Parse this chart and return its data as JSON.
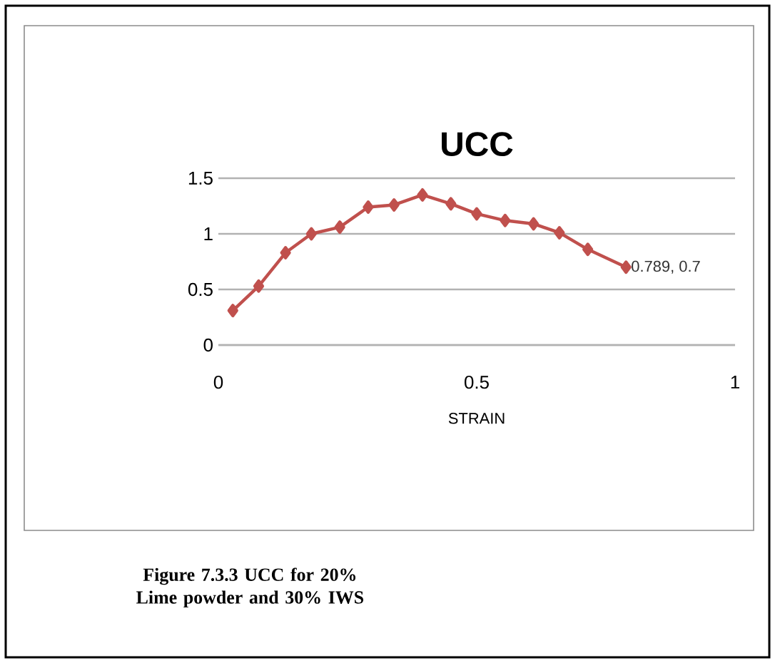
{
  "chart_data": {
    "type": "line",
    "title": "UCC",
    "xlabel": "STRAIN",
    "x": [
      0.028,
      0.078,
      0.13,
      0.18,
      0.235,
      0.29,
      0.34,
      0.395,
      0.45,
      0.5,
      0.555,
      0.61,
      0.66,
      0.715,
      0.789
    ],
    "series": [
      {
        "color": "#c0504d",
        "values": [
          0.31,
          0.53,
          0.83,
          1.0,
          1.06,
          1.24,
          1.26,
          1.35,
          1.27,
          1.18,
          1.12,
          1.09,
          1.01,
          0.86,
          0.7
        ]
      }
    ],
    "xlim": [
      0,
      1
    ],
    "ylim": [
      0,
      1.5
    ],
    "xticks": [
      0,
      0.5,
      1
    ],
    "yticks": [
      0,
      0.5,
      1,
      1.5
    ],
    "grid": "y",
    "marker": "diamond",
    "line_style": "solid",
    "annotations": [
      {
        "text": "0.789, 0.7",
        "x": 0.789,
        "y": 0.7
      },
      "Figure 7.3.3 UCC for 20% Lime powder and 30% IWS"
    ]
  }
}
